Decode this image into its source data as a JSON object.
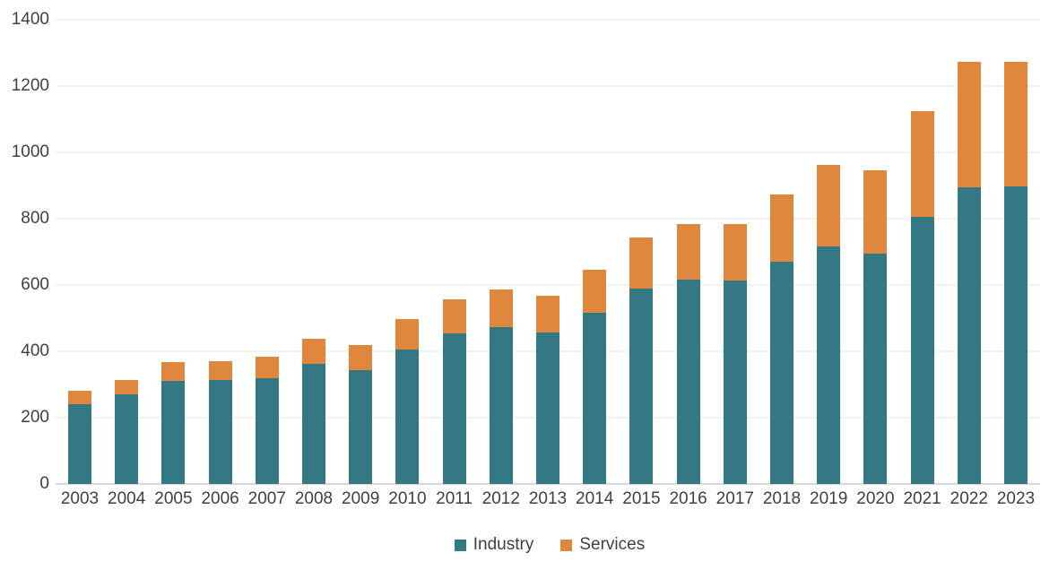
{
  "chart_data": {
    "type": "bar",
    "stacked": true,
    "title": "",
    "xlabel": "",
    "ylabel": "",
    "categories": [
      "2003",
      "2004",
      "2005",
      "2006",
      "2007",
      "2008",
      "2009",
      "2010",
      "2011",
      "2012",
      "2013",
      "2014",
      "2015",
      "2016",
      "2017",
      "2018",
      "2019",
      "2020",
      "2021",
      "2022",
      "2023"
    ],
    "series": [
      {
        "name": "Industry",
        "color": "#337883",
        "values": [
          240,
          270,
          312,
          313,
          320,
          362,
          344,
          406,
          454,
          472,
          457,
          517,
          588,
          617,
          613,
          671,
          717,
          696,
          805,
          895,
          897
        ]
      },
      {
        "name": "Services",
        "color": "#DF873C",
        "values": [
          40,
          43,
          55,
          57,
          63,
          77,
          76,
          92,
          104,
          115,
          112,
          130,
          154,
          166,
          170,
          201,
          245,
          251,
          320,
          377,
          375
        ]
      }
    ],
    "ylim": [
      0,
      1400
    ],
    "y_tick_step": 200,
    "y_tick_labels": [
      "0",
      "200",
      "400",
      "600",
      "800",
      "1000",
      "1200",
      "1400"
    ],
    "grid": true,
    "legend_position": "bottom-center"
  },
  "styles": {
    "industry_color": "#337883",
    "services_color": "#DF873C",
    "label_color": "#404040",
    "gridline_color": "#F2F2F2",
    "axis_line_color": "#D7D7D7",
    "background": "#FFFFFF"
  }
}
